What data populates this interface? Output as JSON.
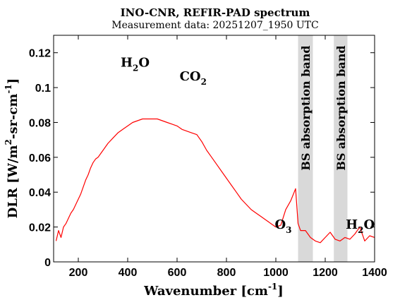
{
  "chart_data": {
    "type": "line",
    "title": "INO-CNR, REFIR-PAD spectrum",
    "subtitle": "Measurement data: 20251207_1950 UTC",
    "xlabel": "Wavenumber [cm",
    "xlabel_sup": "-1",
    "xlabel_end": "]",
    "ylabel": "DLR [W/m",
    "ylabel_sup1": "2",
    "ylabel_mid": "-sr-cm",
    "ylabel_sup2": "-1",
    "ylabel_end": "]",
    "xlim": [
      100,
      1400
    ],
    "ylim": [
      0,
      0.13
    ],
    "x_ticks": [
      200,
      400,
      600,
      800,
      1000,
      1200,
      1400
    ],
    "y_ticks": [
      0,
      0.02,
      0.04,
      0.06,
      0.08,
      0.1,
      0.12
    ],
    "y_tick_labels": [
      "0",
      "0.02",
      "0.04",
      "0.06",
      "0.08",
      "0.1",
      "0.12"
    ],
    "grid": false,
    "line_color": "#ff0000",
    "band_color": "#d9d9d9",
    "bands": [
      {
        "x0": 1090,
        "x1": 1150,
        "label": "BS absorption band"
      },
      {
        "x0": 1235,
        "x1": 1290,
        "label": "BS absorption band"
      }
    ],
    "annotations": [
      {
        "base": "H",
        "sub": "2",
        "tail": "O",
        "x": 430,
        "y": 0.112
      },
      {
        "base": "CO",
        "sub": "2",
        "tail": "",
        "x": 665,
        "y": 0.104
      },
      {
        "base": "O",
        "sub": "3",
        "tail": "",
        "x": 1030,
        "y": 0.019
      },
      {
        "base": "H",
        "sub": "2",
        "tail": "O",
        "x": 1342,
        "y": 0.019
      }
    ],
    "series": [
      {
        "x": [
          110,
          120,
          130,
          140,
          150,
          160,
          170,
          180,
          190,
          200,
          210,
          220,
          230,
          240,
          250,
          260,
          270,
          280,
          290,
          300,
          320,
          340,
          360,
          380,
          400,
          420,
          440,
          460,
          480,
          500,
          520,
          540,
          560,
          580,
          600,
          620,
          640,
          660,
          680,
          700,
          720,
          740,
          760,
          780,
          800,
          820,
          840,
          860,
          880,
          900,
          920,
          940,
          960,
          980,
          1000,
          1020,
          1040,
          1060,
          1080,
          1090,
          1100,
          1120,
          1140,
          1160,
          1180,
          1200,
          1220,
          1240,
          1260,
          1280,
          1300,
          1320,
          1340,
          1360,
          1380,
          1400
        ],
        "y": [
          0.012,
          0.018,
          0.014,
          0.02,
          0.022,
          0.025,
          0.028,
          0.03,
          0.033,
          0.036,
          0.039,
          0.043,
          0.047,
          0.05,
          0.054,
          0.057,
          0.059,
          0.06,
          0.062,
          0.064,
          0.068,
          0.071,
          0.074,
          0.076,
          0.078,
          0.08,
          0.081,
          0.082,
          0.082,
          0.082,
          0.082,
          0.081,
          0.08,
          0.079,
          0.078,
          0.076,
          0.075,
          0.074,
          0.073,
          0.069,
          0.064,
          0.06,
          0.056,
          0.052,
          0.048,
          0.044,
          0.04,
          0.036,
          0.033,
          0.03,
          0.028,
          0.026,
          0.024,
          0.022,
          0.02,
          0.021,
          0.03,
          0.035,
          0.042,
          0.022,
          0.018,
          0.018,
          0.014,
          0.012,
          0.011,
          0.014,
          0.017,
          0.013,
          0.012,
          0.014,
          0.013,
          0.016,
          0.02,
          0.012,
          0.015,
          0.014
        ]
      }
    ]
  }
}
